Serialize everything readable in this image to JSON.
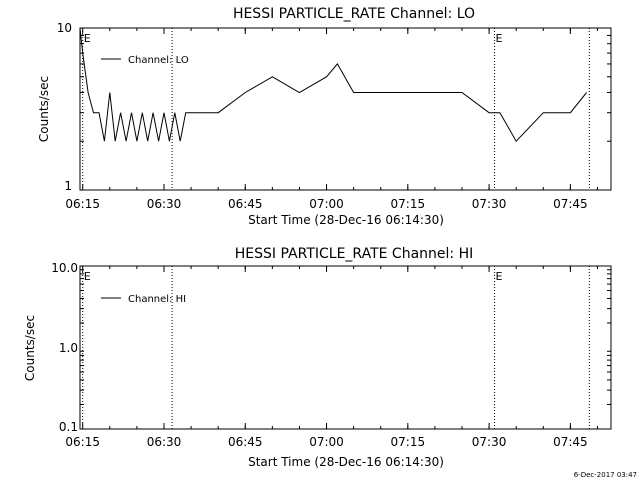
{
  "footer": {
    "timestamp": "6-Dec-2017 03:47"
  },
  "chart_data": [
    {
      "type": "line",
      "title": "HESSI PARTICLE_RATE Channel: LO",
      "ylabel": "Counts/sec",
      "xlabel": "Start Time (28-Dec-16 06:14:30)",
      "yscale": "log",
      "ylim": [
        1,
        10
      ],
      "y_tick_labels": [
        "1",
        "10"
      ],
      "x_tick_labels": [
        "06:15",
        "06:30",
        "06:45",
        "07:00",
        "07:15",
        "07:30",
        "07:45"
      ],
      "x_range_minutes_after_start": [
        0,
        98
      ],
      "legend": {
        "entries": [
          "Channel: LO"
        ],
        "placement": "top-left"
      },
      "markers": [
        {
          "label": "E",
          "time": "06:15"
        },
        {
          "label": "",
          "time": "06:31.5"
        },
        {
          "label": "E",
          "time": "07:31"
        },
        {
          "label": "",
          "time": "07:48.5"
        }
      ],
      "series": [
        {
          "name": "Channel: LO",
          "x": [
            "06:14.5",
            "06:15",
            "06:16",
            "06:17",
            "06:18",
            "06:19",
            "06:20",
            "06:21",
            "06:22",
            "06:23",
            "06:24",
            "06:25",
            "06:26",
            "06:27",
            "06:28",
            "06:29",
            "06:30",
            "06:31",
            "06:32",
            "06:33",
            "06:34",
            "06:35",
            "06:40",
            "06:45",
            "06:50",
            "06:55",
            "07:00",
            "07:02",
            "07:05",
            "07:10",
            "07:15",
            "07:20",
            "07:25",
            "07:30",
            "07:32",
            "07:35",
            "07:40",
            "07:45",
            "07:48"
          ],
          "values": [
            10,
            7,
            4,
            3,
            3,
            2,
            4,
            2,
            3,
            2,
            3,
            2,
            3,
            2,
            3,
            2,
            3,
            2,
            3,
            2,
            3,
            3,
            3,
            4,
            5,
            4,
            5,
            6,
            4,
            4,
            4,
            4,
            4,
            3,
            3,
            2,
            3,
            3,
            4
          ]
        }
      ]
    },
    {
      "type": "line",
      "title": "HESSI PARTICLE_RATE Channel: HI",
      "ylabel": "Counts/sec",
      "xlabel": "Start Time (28-Dec-16 06:14:30)",
      "yscale": "log",
      "ylim": [
        0.1,
        10
      ],
      "y_tick_labels": [
        "0.1",
        "1.0",
        "10.0"
      ],
      "x_tick_labels": [
        "06:15",
        "06:30",
        "06:45",
        "07:00",
        "07:15",
        "07:30",
        "07:45"
      ],
      "x_range_minutes_after_start": [
        0,
        98
      ],
      "legend": {
        "entries": [
          "Channel: HI"
        ],
        "placement": "top-left"
      },
      "markers": [
        {
          "label": "E",
          "time": "06:15"
        },
        {
          "label": "",
          "time": "06:31.5"
        },
        {
          "label": "E",
          "time": "07:31"
        },
        {
          "label": "",
          "time": "07:48.5"
        }
      ],
      "series": [
        {
          "name": "Channel: HI",
          "x": [],
          "values": []
        }
      ]
    }
  ]
}
